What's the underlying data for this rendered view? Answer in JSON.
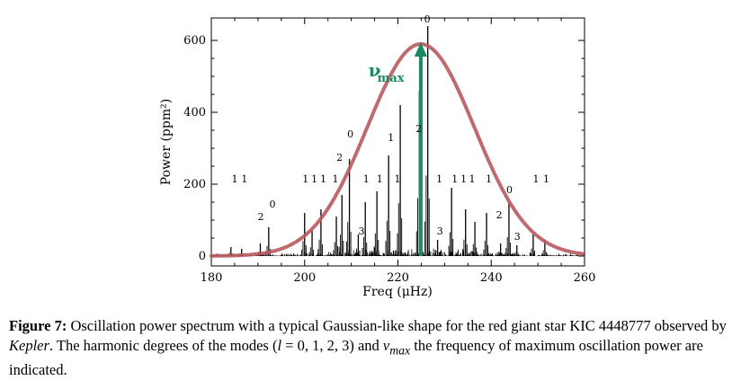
{
  "chart_data": {
    "type": "line",
    "xlabel": "Freq (μHz)",
    "ylabel": "Power (ppm²)",
    "xlim": [
      180,
      260
    ],
    "ylim": [
      0,
      650
    ],
    "xticks": [
      "180",
      "200",
      "220",
      "240",
      "260"
    ],
    "yticks": [
      "0",
      "200",
      "400",
      "600"
    ],
    "numax": {
      "label": "ν",
      "sub": "max",
      "freq": 224.9,
      "color": "#1a8a63"
    },
    "gaussian": {
      "center": 224.9,
      "amplitude": 590,
      "sigma": 11.5,
      "color": "#b85a5e"
    },
    "spectrum_peaks": [
      {
        "freq": 192.3,
        "power": 80,
        "degree": "0"
      },
      {
        "freq": 190.5,
        "power": 35,
        "degree": "2"
      },
      {
        "freq": 184.2,
        "power": 25,
        "degree": "1"
      },
      {
        "freq": 186.5,
        "power": 20,
        "degree": "1"
      },
      {
        "freq": 200.0,
        "power": 120,
        "degree": "1"
      },
      {
        "freq": 201.6,
        "power": 70,
        "degree": "1"
      },
      {
        "freq": 203.5,
        "power": 130,
        "degree": "1"
      },
      {
        "freq": 206.8,
        "power": 110,
        "degree": "1"
      },
      {
        "freq": 208.0,
        "power": 170,
        "degree": "2"
      },
      {
        "freq": 209.6,
        "power": 270,
        "degree": "0"
      },
      {
        "freq": 211.5,
        "power": 60,
        "degree": "3"
      },
      {
        "freq": 213.0,
        "power": 150,
        "degree": "1"
      },
      {
        "freq": 215.5,
        "power": 180,
        "degree": "1"
      },
      {
        "freq": 218.0,
        "power": 280,
        "degree": "1"
      },
      {
        "freq": 220.5,
        "power": 420,
        "degree": "1"
      },
      {
        "freq": 224.6,
        "power": 460,
        "degree": "2"
      },
      {
        "freq": 226.4,
        "power": 640,
        "degree": "0"
      },
      {
        "freq": 228.5,
        "power": 45,
        "degree": "3"
      },
      {
        "freq": 231.5,
        "power": 190,
        "degree": "1"
      },
      {
        "freq": 234.5,
        "power": 130,
        "degree": "1"
      },
      {
        "freq": 236.5,
        "power": 95,
        "degree": "1"
      },
      {
        "freq": 239.0,
        "power": 120,
        "degree": "1"
      },
      {
        "freq": 242.0,
        "power": 35,
        "degree": "2"
      },
      {
        "freq": 243.8,
        "power": 150,
        "degree": "0"
      },
      {
        "freq": 245.5,
        "power": 30,
        "degree": "3"
      },
      {
        "freq": 249.0,
        "power": 60,
        "degree": "1"
      },
      {
        "freq": 251.5,
        "power": 45,
        "degree": "1"
      }
    ],
    "mode_labels": [
      {
        "text": "1",
        "freq": 185.0,
        "power": 215
      },
      {
        "text": "1",
        "freq": 187.1,
        "power": 215
      },
      {
        "text": "2",
        "freq": 190.6,
        "power": 110
      },
      {
        "text": "0",
        "freq": 193.1,
        "power": 145
      },
      {
        "text": "1",
        "freq": 200.2,
        "power": 215
      },
      {
        "text": "1",
        "freq": 202.1,
        "power": 215
      },
      {
        "text": "1",
        "freq": 204.0,
        "power": 215
      },
      {
        "text": "1",
        "freq": 206.6,
        "power": 215
      },
      {
        "text": "2",
        "freq": 207.5,
        "power": 275
      },
      {
        "text": "0",
        "freq": 209.8,
        "power": 340
      },
      {
        "text": "3",
        "freq": 212.2,
        "power": 70
      },
      {
        "text": "1",
        "freq": 213.2,
        "power": 215
      },
      {
        "text": "1",
        "freq": 216.1,
        "power": 215
      },
      {
        "text": "1",
        "freq": 218.5,
        "power": 330
      },
      {
        "text": "1",
        "freq": 219.9,
        "power": 215
      },
      {
        "text": "2",
        "freq": 224.5,
        "power": 355
      },
      {
        "text": "0",
        "freq": 226.3,
        "power": 660
      },
      {
        "text": "3",
        "freq": 229.0,
        "power": 70
      },
      {
        "text": "1",
        "freq": 228.9,
        "power": 215
      },
      {
        "text": "1",
        "freq": 232.2,
        "power": 215
      },
      {
        "text": "1",
        "freq": 234.1,
        "power": 215
      },
      {
        "text": "1",
        "freq": 235.9,
        "power": 215
      },
      {
        "text": "1",
        "freq": 239.5,
        "power": 215
      },
      {
        "text": "2",
        "freq": 241.7,
        "power": 115
      },
      {
        "text": "0",
        "freq": 243.9,
        "power": 185
      },
      {
        "text": "3",
        "freq": 245.6,
        "power": 55
      },
      {
        "text": "1",
        "freq": 249.6,
        "power": 215
      },
      {
        "text": "1",
        "freq": 251.8,
        "power": 215
      }
    ]
  },
  "caption": {
    "label": "Figure 7:",
    "text_1": " Oscillation power spectrum with a typical Gaussian-like shape for the red giant star KIC 4448777 observed by ",
    "italic": "Kepler",
    "text_2": ". The harmonic degrees of the modes (",
    "math_l": "l",
    "text_3": " = 0, 1, 2, 3) and ",
    "math_nu": "ν",
    "math_sub": "max",
    "text_4": " the frequency of maximum oscillation power are indicated."
  }
}
